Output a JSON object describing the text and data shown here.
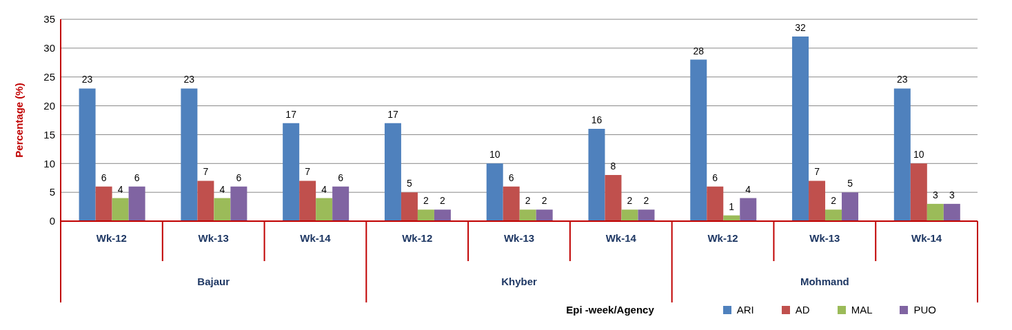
{
  "chart_data": {
    "type": "bar",
    "ylabel": "Percentage (%)",
    "categories": [
      "Wk-12",
      "Wk-13",
      "Wk-14",
      "Wk-12",
      "Wk-13",
      "Wk-14",
      "Wk-12",
      "Wk-13",
      "Wk-14"
    ],
    "series": [
      {
        "name": "ARI",
        "color": "#4f81bd",
        "values": [
          23,
          23,
          17,
          17,
          10,
          16,
          28,
          32,
          23
        ]
      },
      {
        "name": "AD",
        "color": "#c0504d",
        "values": [
          6,
          7,
          7,
          5,
          6,
          8,
          6,
          7,
          10
        ]
      },
      {
        "name": "MAL",
        "color": "#9bbb59",
        "values": [
          4,
          4,
          4,
          2,
          2,
          2,
          1,
          2,
          3
        ]
      },
      {
        "name": "PUO",
        "color": "#8064a2",
        "values": [
          6,
          6,
          6,
          2,
          2,
          2,
          4,
          5,
          3
        ]
      }
    ],
    "annotations": [
      "Bajaur",
      "Khyber",
      "Mohmand",
      "Epi -week/Agency"
    ],
    "ylim": [
      0,
      35
    ],
    "yticks": [
      0,
      5,
      10,
      15,
      20,
      25,
      30,
      35
    ],
    "grid": "y",
    "legend": "bottom right",
    "data_labels": true
  }
}
